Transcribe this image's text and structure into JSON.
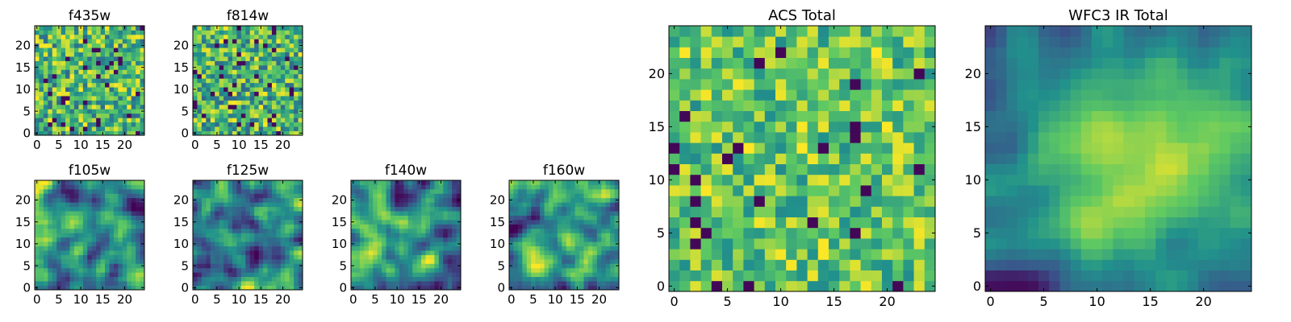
{
  "figure_title": "",
  "colormap": {
    "name": "viridis",
    "stops": [
      "#440154",
      "#3b528b",
      "#21918c",
      "#5ec962",
      "#fde725"
    ]
  },
  "chart_data": [
    {
      "type": "heatmap",
      "title": "f435w",
      "grid_size": 25,
      "xlim": [
        0,
        24
      ],
      "ylim": [
        0,
        24
      ],
      "x_ticks": [
        0,
        5,
        10,
        15,
        20
      ],
      "y_ticks": [
        0,
        5,
        10,
        15,
        20
      ],
      "x_tick_labels": [
        "0",
        "5",
        "10",
        "15",
        "20"
      ],
      "y_tick_labels": [
        "0",
        "5",
        "10",
        "15",
        "20"
      ],
      "texture": "noise",
      "seed": 11
    },
    {
      "type": "heatmap",
      "title": "f814w",
      "grid_size": 25,
      "xlim": [
        0,
        24
      ],
      "ylim": [
        0,
        24
      ],
      "x_ticks": [
        0,
        5,
        10,
        15,
        20
      ],
      "y_ticks": [
        0,
        5,
        10,
        15,
        20
      ],
      "x_tick_labels": [
        "0",
        "5",
        "10",
        "15",
        "20"
      ],
      "y_tick_labels": [
        "0",
        "5",
        "10",
        "15",
        "20"
      ],
      "texture": "noise",
      "seed": 23
    },
    {
      "type": "heatmap",
      "title": "f105w",
      "grid_size": 25,
      "xlim": [
        0,
        24
      ],
      "ylim": [
        0,
        24
      ],
      "x_ticks": [
        0,
        5,
        10,
        15,
        20
      ],
      "y_ticks": [
        0,
        5,
        10,
        15,
        20
      ],
      "x_tick_labels": [
        "0",
        "5",
        "10",
        "15",
        "20"
      ],
      "y_tick_labels": [
        "0",
        "5",
        "10",
        "15",
        "20"
      ],
      "texture": "smooth",
      "seed": 37
    },
    {
      "type": "heatmap",
      "title": "f125w",
      "grid_size": 25,
      "xlim": [
        0,
        24
      ],
      "ylim": [
        0,
        24
      ],
      "x_ticks": [
        0,
        5,
        10,
        15,
        20
      ],
      "y_ticks": [
        0,
        5,
        10,
        15,
        20
      ],
      "x_tick_labels": [
        "0",
        "5",
        "10",
        "15",
        "20"
      ],
      "y_tick_labels": [
        "0",
        "5",
        "10",
        "15",
        "20"
      ],
      "texture": "smooth",
      "seed": 41
    },
    {
      "type": "heatmap",
      "title": "f140w",
      "grid_size": 25,
      "xlim": [
        0,
        24
      ],
      "ylim": [
        0,
        24
      ],
      "x_ticks": [
        0,
        5,
        10,
        15,
        20
      ],
      "y_ticks": [
        0,
        5,
        10,
        15,
        20
      ],
      "x_tick_labels": [
        "0",
        "5",
        "10",
        "15",
        "20"
      ],
      "y_tick_labels": [
        "0",
        "5",
        "10",
        "15",
        "20"
      ],
      "texture": "smooth",
      "seed": 53
    },
    {
      "type": "heatmap",
      "title": "f160w",
      "grid_size": 25,
      "xlim": [
        0,
        24
      ],
      "ylim": [
        0,
        24
      ],
      "x_ticks": [
        0,
        5,
        10,
        15,
        20
      ],
      "y_ticks": [
        0,
        5,
        10,
        15,
        20
      ],
      "x_tick_labels": [
        "0",
        "5",
        "10",
        "15",
        "20"
      ],
      "y_tick_labels": [
        "0",
        "5",
        "10",
        "15",
        "20"
      ],
      "texture": "smooth",
      "seed": 67
    },
    {
      "type": "heatmap",
      "title": "ACS Total",
      "grid_size": 25,
      "xlim": [
        0,
        24
      ],
      "ylim": [
        0,
        24
      ],
      "x_ticks": [
        0,
        5,
        10,
        15,
        20
      ],
      "y_ticks": [
        0,
        5,
        10,
        15,
        20
      ],
      "x_tick_labels": [
        "0",
        "5",
        "10",
        "15",
        "20"
      ],
      "y_tick_labels": [
        "0",
        "5",
        "10",
        "15",
        "20"
      ],
      "texture": "noise-bright",
      "seed": 79
    },
    {
      "type": "heatmap",
      "title": "WFC3 IR Total",
      "grid_size": 25,
      "xlim": [
        0,
        24
      ],
      "ylim": [
        0,
        24
      ],
      "x_ticks": [
        0,
        5,
        10,
        15,
        20
      ],
      "y_ticks": [
        0,
        5,
        10,
        15,
        20
      ],
      "x_tick_labels": [
        "0",
        "5",
        "10",
        "15",
        "20"
      ],
      "y_tick_labels": [
        "0",
        "5",
        "10",
        "15",
        "20"
      ],
      "texture": "smooth-central",
      "seed": 97
    }
  ]
}
